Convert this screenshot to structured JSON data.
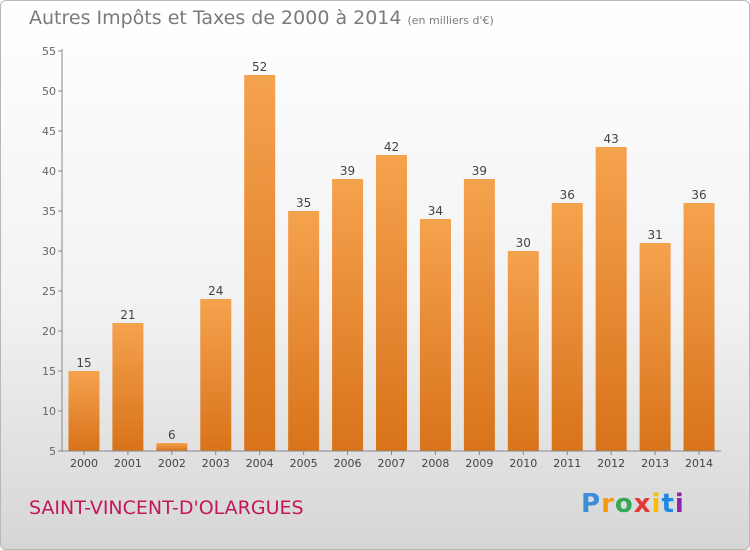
{
  "header": {
    "title": "Autres Impôts et Taxes de 2000 à 2014",
    "unit": "(en milliers d'€)"
  },
  "footer": {
    "city": "SAINT-VINCENT-D'OLARGUES",
    "logo": "Proxiti"
  },
  "colors": {
    "bar_top": "#f5a24e",
    "bar_bottom": "#d8731a",
    "city": "#c2185b",
    "axis": "#888888"
  },
  "chart_data": {
    "type": "bar",
    "title": "Autres Impôts et Taxes de 2000 à 2014",
    "subtitle": "(en milliers d'€)",
    "xlabel": "",
    "ylabel": "",
    "categories": [
      "2000",
      "2001",
      "2002",
      "2003",
      "2004",
      "2005",
      "2006",
      "2007",
      "2008",
      "2009",
      "2010",
      "2011",
      "2012",
      "2013",
      "2014"
    ],
    "values": [
      15,
      21,
      6,
      24,
      52,
      35,
      39,
      42,
      34,
      39,
      30,
      36,
      43,
      31,
      36
    ],
    "ylim": [
      5,
      55
    ],
    "yticks": [
      5,
      10,
      15,
      20,
      25,
      30,
      35,
      40,
      45,
      50,
      55
    ],
    "grid": false,
    "data_labels": true
  }
}
